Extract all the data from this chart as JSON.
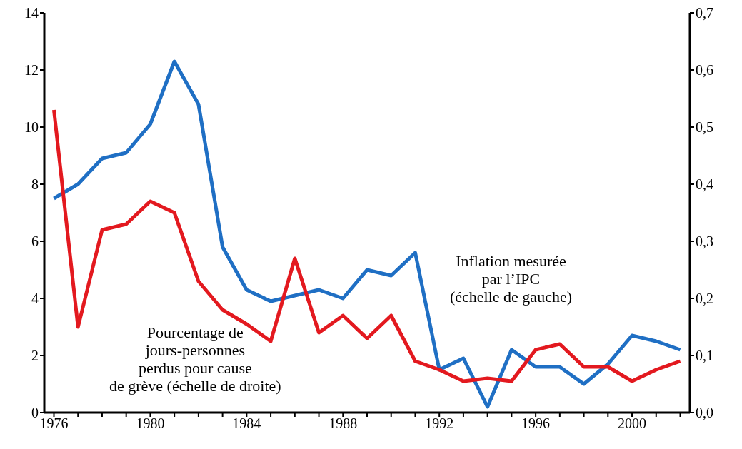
{
  "chart_data": {
    "type": "line",
    "x": [
      1976,
      1977,
      1978,
      1979,
      1980,
      1981,
      1982,
      1983,
      1984,
      1985,
      1986,
      1987,
      1988,
      1989,
      1990,
      1991,
      1992,
      1993,
      1994,
      1995,
      1996,
      1997,
      1998,
      1999,
      2000,
      2001,
      2002
    ],
    "series": [
      {
        "color": "#1f6fc4",
        "values": [
          7.5,
          8.0,
          8.9,
          9.1,
          10.1,
          12.3,
          10.8,
          5.8,
          4.3,
          3.9,
          4.1,
          4.3,
          4.0,
          5.0,
          4.8,
          5.6,
          1.5,
          1.9,
          0.2,
          2.2,
          1.6,
          1.6,
          1.0,
          1.7,
          2.7,
          2.5,
          2.2
        ]
      },
      {
        "color": "#e3191f",
        "axis": "y2",
        "values": [
          0.53,
          0.15,
          0.32,
          0.33,
          0.37,
          0.35,
          0.23,
          0.18,
          0.155,
          0.125,
          0.27,
          0.14,
          0.17,
          0.13,
          0.17,
          0.09,
          0.075,
          0.055,
          0.06,
          0.055,
          0.11,
          0.12,
          0.08,
          0.08,
          0.055,
          0.075,
          0.09
        ]
      }
    ],
    "xlim": [
      1975.6,
      2002.4
    ],
    "xticks": [
      1976,
      {
        "value": 1977,
        "label": null
      },
      {
        "value": 1978,
        "label": null
      },
      {
        "value": 1979,
        "label": null
      },
      1980,
      {
        "value": 1981,
        "label": null
      },
      {
        "value": 1982,
        "label": null
      },
      {
        "value": 1983,
        "label": null
      },
      1984,
      {
        "value": 1985,
        "label": null
      },
      {
        "value": 1986,
        "label": null
      },
      {
        "value": 1987,
        "label": null
      },
      1988,
      {
        "value": 1989,
        "label": null
      },
      {
        "value": 1990,
        "label": null
      },
      {
        "value": 1991,
        "label": null
      },
      1992,
      {
        "value": 1993,
        "label": null
      },
      {
        "value": 1994,
        "label": null
      },
      {
        "value": 1995,
        "label": null
      },
      1996,
      {
        "value": 1997,
        "label": null
      },
      {
        "value": 1998,
        "label": null
      },
      {
        "value": 1999,
        "label": null
      },
      2000,
      {
        "value": 2001,
        "label": null
      },
      {
        "value": 2002,
        "label": null
      }
    ],
    "ylim": [
      0,
      14
    ],
    "yticks": [
      0,
      2,
      4,
      6,
      8,
      10,
      12,
      14
    ],
    "y2lim": [
      0,
      0.7
    ],
    "y2ticks": [
      {
        "value": 0,
        "label": "0,0"
      },
      {
        "value": 0.1,
        "label": "0,1"
      },
      {
        "value": 0.2,
        "label": "0,2"
      },
      {
        "value": 0.3,
        "label": "0,3"
      },
      {
        "value": 0.4,
        "label": "0,4"
      },
      {
        "value": 0.5,
        "label": "0,5"
      },
      {
        "value": 0.6,
        "label": "0,6"
      },
      {
        "value": 0.7,
        "label": "0,7"
      }
    ],
    "annotations": [
      "Inflation mesurée\npar l’IPC\n(échelle de gauche)",
      "Pourcentage de\njours-personnes\nperdus pour cause\nde grève (échelle de droite)"
    ],
    "grid": false,
    "legend": false,
    "marker": "none",
    "line_style": "solid"
  }
}
